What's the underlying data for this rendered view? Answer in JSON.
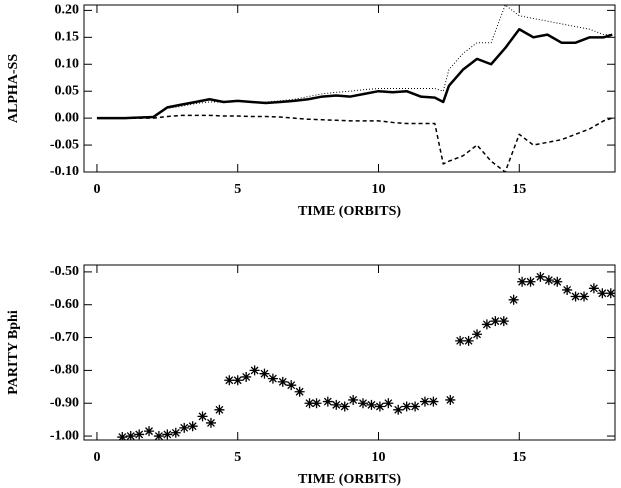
{
  "chart_data": [
    {
      "type": "line",
      "x_label": "TIME (ORBITS)",
      "y_label": "ALPHA-SS",
      "x": [
        0,
        1,
        2,
        2.5,
        3,
        3.5,
        4,
        4.5,
        5,
        5.5,
        6,
        6.5,
        7,
        7.5,
        8,
        8.5,
        9,
        9.5,
        10,
        10.5,
        11,
        11.5,
        12,
        12.3,
        12.5,
        13,
        13.5,
        14,
        14.5,
        15,
        15.5,
        16,
        16.5,
        17,
        17.5,
        18,
        18.3
      ],
      "series": [
        {
          "color": "#000000",
          "style": "dotted",
          "width": 1,
          "values": [
            0,
            0,
            0.002,
            0.018,
            0.022,
            0.027,
            0.03,
            0.03,
            0.032,
            0.03,
            0.03,
            0.032,
            0.035,
            0.04,
            0.045,
            0.048,
            0.05,
            0.053,
            0.055,
            0.055,
            0.055,
            0.055,
            0.055,
            0.05,
            0.09,
            0.12,
            0.14,
            0.14,
            0.21,
            0.19,
            0.185,
            0.18,
            0.175,
            0.17,
            0.165,
            0.155,
            0.155
          ]
        },
        {
          "color": "#000000",
          "style": "solid",
          "width": 2.5,
          "values": [
            0,
            0,
            0.002,
            0.02,
            0.025,
            0.03,
            0.035,
            0.03,
            0.032,
            0.03,
            0.028,
            0.03,
            0.032,
            0.035,
            0.04,
            0.042,
            0.04,
            0.045,
            0.05,
            0.048,
            0.05,
            0.04,
            0.038,
            0.03,
            0.06,
            0.09,
            0.11,
            0.1,
            0.13,
            0.165,
            0.15,
            0.155,
            0.14,
            0.14,
            0.15,
            0.15,
            0.155
          ]
        },
        {
          "color": "#000000",
          "style": "dashed",
          "width": 1.5,
          "values": [
            0,
            0,
            0,
            0.003,
            0.005,
            0.005,
            0.005,
            0.004,
            0.004,
            0.003,
            0.003,
            0.002,
            0,
            -0.002,
            -0.003,
            -0.004,
            -0.005,
            -0.005,
            -0.005,
            -0.008,
            -0.01,
            -0.01,
            -0.01,
            -0.085,
            -0.08,
            -0.07,
            -0.05,
            -0.08,
            -0.1,
            -0.03,
            -0.05,
            -0.045,
            -0.04,
            -0.03,
            -0.02,
            -0.005,
            0
          ]
        }
      ],
      "xlim": [
        -0.46,
        18.4
      ],
      "xticks": [
        0,
        5,
        10,
        15
      ],
      "ylim": [
        -0.1,
        0.21
      ],
      "yticks": [
        {
          "value": -0.1,
          "label": "-0.10"
        },
        {
          "value": -0.05,
          "label": "-0.05"
        },
        {
          "value": 0,
          "label": "0.00"
        },
        {
          "value": 0.05,
          "label": "0.05"
        },
        {
          "value": 0.1,
          "label": "0.10"
        },
        {
          "value": 0.15,
          "label": "0.15"
        },
        {
          "value": 0.2,
          "label": "0.20"
        }
      ]
    },
    {
      "type": "scatter",
      "x_label": "TIME (ORBITS)",
      "y_label": "PARITY Bphi",
      "color": "#000000",
      "x": [
        0.9,
        1.2,
        1.5,
        1.85,
        2.2,
        2.5,
        2.8,
        3.1,
        3.4,
        3.75,
        4.05,
        4.35,
        4.7,
        5.0,
        5.3,
        5.6,
        5.95,
        6.25,
        6.6,
        6.9,
        7.2,
        7.55,
        7.8,
        8.2,
        8.5,
        8.8,
        9.1,
        9.45,
        9.75,
        10.05,
        10.35,
        10.7,
        11.0,
        11.3,
        11.65,
        11.95,
        12.55,
        12.9,
        13.2,
        13.5,
        13.85,
        14.15,
        14.45,
        14.8,
        15.1,
        15.4,
        15.75,
        16.05,
        16.35,
        16.7,
        17.0,
        17.3,
        17.65,
        17.95,
        18.25
      ],
      "y": [
        -1.003,
        -1.0,
        -0.995,
        -0.985,
        -1.0,
        -0.995,
        -0.99,
        -0.975,
        -0.97,
        -0.94,
        -0.96,
        -0.92,
        -0.83,
        -0.83,
        -0.82,
        -0.8,
        -0.81,
        -0.825,
        -0.835,
        -0.845,
        -0.865,
        -0.9,
        -0.9,
        -0.895,
        -0.905,
        -0.91,
        -0.89,
        -0.9,
        -0.905,
        -0.91,
        -0.9,
        -0.92,
        -0.91,
        -0.91,
        -0.895,
        -0.895,
        -0.89,
        -0.71,
        -0.71,
        -0.69,
        -0.66,
        -0.65,
        -0.65,
        -0.585,
        -0.53,
        -0.53,
        -0.515,
        -0.525,
        -0.53,
        -0.555,
        -0.575,
        -0.575,
        -0.55,
        -0.565,
        -0.565
      ],
      "xlim": [
        -0.46,
        18.4
      ],
      "xticks": [
        0,
        5,
        10,
        15
      ],
      "ylim": [
        -1.012,
        -0.479
      ],
      "yticks": [
        {
          "value": -1.0,
          "label": "-1.00"
        },
        {
          "value": -0.9,
          "label": "-0.90"
        },
        {
          "value": -0.8,
          "label": "-0.80"
        },
        {
          "value": -0.7,
          "label": "-0.70"
        },
        {
          "value": -0.6,
          "label": "-0.60"
        },
        {
          "value": -0.5,
          "label": "-0.50"
        }
      ]
    }
  ]
}
